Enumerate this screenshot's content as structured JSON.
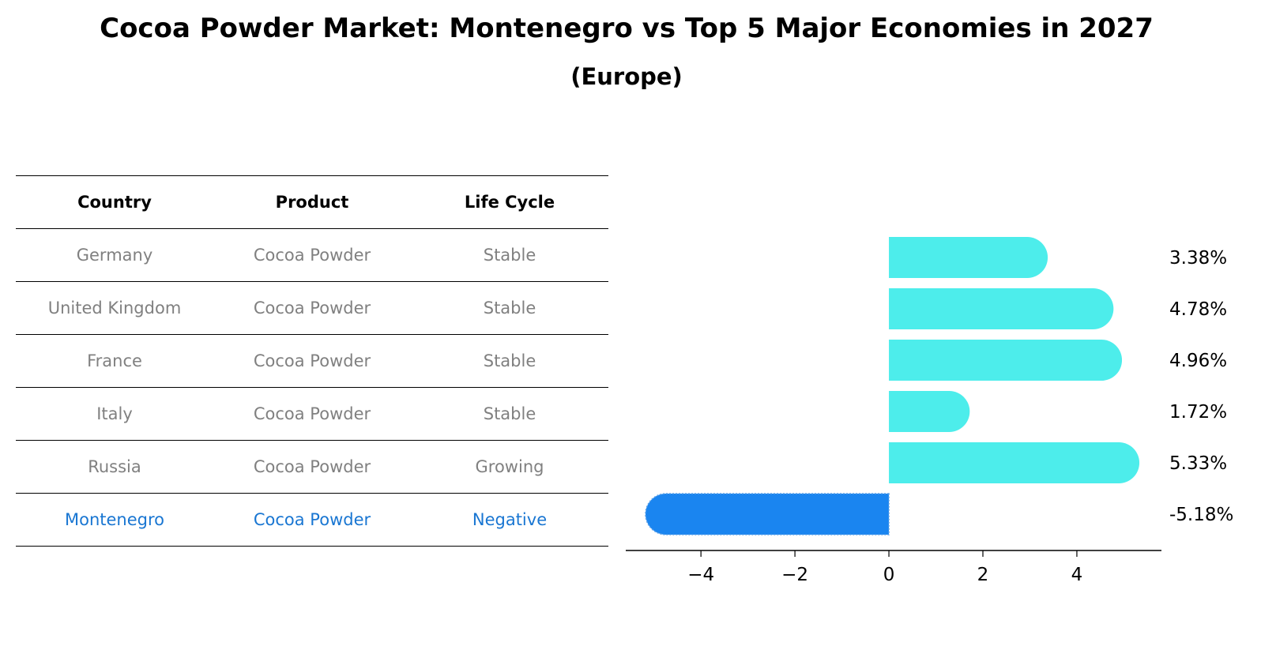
{
  "title": "Cocoa Powder Market: Montenegro vs Top 5 Major Economies in 2027",
  "subtitle": "(Europe)",
  "table": {
    "headers": [
      "Country",
      "Product",
      "Life Cycle"
    ],
    "rows": [
      {
        "country": "Germany",
        "product": "Cocoa Powder",
        "life_cycle": "Stable"
      },
      {
        "country": "United Kingdom",
        "product": "Cocoa Powder",
        "life_cycle": "Stable"
      },
      {
        "country": "France",
        "product": "Cocoa Powder",
        "life_cycle": "Stable"
      },
      {
        "country": "Italy",
        "product": "Cocoa Powder",
        "life_cycle": "Stable"
      },
      {
        "country": "Russia",
        "product": "Cocoa Powder",
        "life_cycle": "Growing"
      },
      {
        "country": "Montenegro",
        "product": "Cocoa Powder",
        "life_cycle": "Negative"
      }
    ]
  },
  "colors": {
    "positive_bar": "#4DEDEB",
    "negative_bar": "#1A85F0",
    "highlight_text": "#1976D2",
    "muted_text": "#808080"
  },
  "chart_data": {
    "type": "bar",
    "orientation": "horizontal",
    "categories": [
      "Germany",
      "United Kingdom",
      "France",
      "Italy",
      "Russia",
      "Montenegro"
    ],
    "values": [
      3.38,
      4.78,
      4.96,
      1.72,
      5.33,
      -5.18
    ],
    "value_labels": [
      "3.38%",
      "4.78%",
      "4.96%",
      "1.72%",
      "5.33%",
      "-5.18%"
    ],
    "xlim": [
      -5.6,
      5.8
    ],
    "xticks": [
      -4,
      -2,
      0,
      2,
      4
    ],
    "xtick_labels": [
      "−4",
      "−2",
      "0",
      "2",
      "4"
    ],
    "grid": false,
    "legend": "none"
  }
}
